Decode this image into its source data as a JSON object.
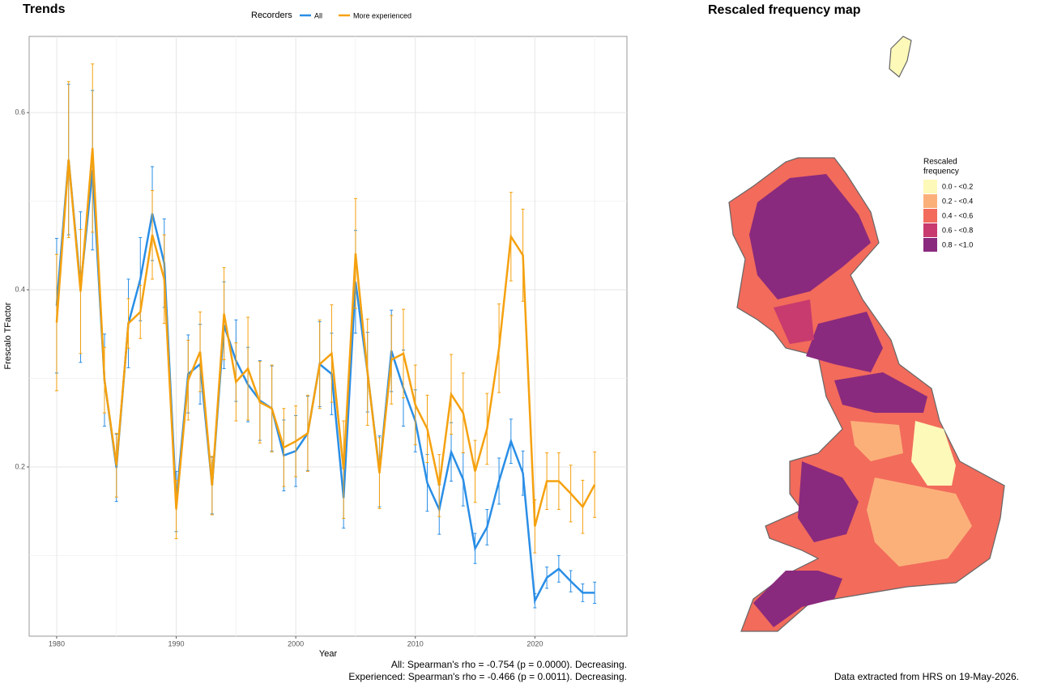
{
  "chart_data": {
    "type": "line",
    "title": "Trends",
    "legend_title": "Recorders",
    "legend_position": "top",
    "xlabel": "Year",
    "ylabel": "Frescalo TFactor",
    "x": [
      1980,
      1981,
      1982,
      1983,
      1984,
      1985,
      1986,
      1987,
      1988,
      1989,
      1990,
      1991,
      1992,
      1993,
      1994,
      1995,
      1996,
      1997,
      1998,
      1999,
      2000,
      2001,
      2002,
      2003,
      2004,
      2005,
      2006,
      2007,
      2008,
      2009,
      2010,
      2011,
      2012,
      2013,
      2014,
      2015,
      2016,
      2017,
      2018,
      2019,
      2020,
      2021,
      2022,
      2023,
      2024,
      2025
    ],
    "series": [
      {
        "name": "All",
        "color": "#2a8ee6",
        "values": [
          0.382,
          0.547,
          0.403,
          0.535,
          0.298,
          0.199,
          0.362,
          0.412,
          0.486,
          0.43,
          0.161,
          0.305,
          0.316,
          0.179,
          0.36,
          0.32,
          0.293,
          0.275,
          0.266,
          0.213,
          0.218,
          0.238,
          0.316,
          0.305,
          0.165,
          0.409,
          0.307,
          0.195,
          0.331,
          0.289,
          0.252,
          0.182,
          0.152,
          0.217,
          0.186,
          0.108,
          0.132,
          0.184,
          0.229,
          0.193,
          0.049,
          0.075,
          0.085,
          0.071,
          0.058,
          0.058
        ],
        "errors": [
          0.076,
          0.085,
          0.085,
          0.09,
          0.052,
          0.038,
          0.05,
          0.047,
          0.053,
          0.05,
          0.034,
          0.044,
          0.045,
          0.032,
          0.049,
          0.046,
          0.042,
          0.045,
          0.048,
          0.04,
          0.04,
          0.042,
          0.048,
          0.046,
          0.034,
          0.058,
          0.045,
          0.04,
          0.046,
          0.043,
          0.035,
          0.032,
          0.028,
          0.033,
          0.03,
          0.017,
          0.02,
          0.026,
          0.025,
          0.025,
          0.008,
          0.012,
          0.015,
          0.012,
          0.01,
          0.012
        ]
      },
      {
        "name": "More experienced",
        "color": "#f5a10f",
        "values": [
          0.363,
          0.547,
          0.398,
          0.56,
          0.298,
          0.202,
          0.362,
          0.375,
          0.462,
          0.412,
          0.152,
          0.298,
          0.33,
          0.179,
          0.373,
          0.296,
          0.311,
          0.273,
          0.266,
          0.222,
          0.229,
          0.238,
          0.316,
          0.328,
          0.197,
          0.441,
          0.307,
          0.193,
          0.321,
          0.328,
          0.27,
          0.243,
          0.179,
          0.282,
          0.261,
          0.195,
          0.243,
          0.334,
          0.46,
          0.439,
          0.133,
          0.184,
          0.184,
          0.17,
          0.155,
          0.18
        ],
        "errors": [
          0.077,
          0.088,
          0.07,
          0.095,
          0.037,
          0.036,
          0.028,
          0.03,
          0.05,
          0.05,
          0.033,
          0.045,
          0.045,
          0.033,
          0.052,
          0.044,
          0.058,
          0.046,
          0.049,
          0.044,
          0.04,
          0.043,
          0.05,
          0.055,
          0.055,
          0.062,
          0.06,
          0.04,
          0.05,
          0.05,
          0.045,
          0.038,
          0.035,
          0.045,
          0.045,
          0.035,
          0.04,
          0.05,
          0.05,
          0.052,
          0.03,
          0.032,
          0.032,
          0.032,
          0.03,
          0.037
        ]
      }
    ],
    "xlim": [
      1977.7,
      2027.7
    ],
    "ylim": [
      0.009,
      0.686
    ],
    "xticks": [
      1980,
      1990,
      2000,
      2010,
      2020
    ],
    "yticks": [
      0.2,
      0.4,
      0.6
    ],
    "xticks_minor": [
      1985,
      1995,
      2005,
      2015,
      2025
    ],
    "yticks_minor": [
      0.1,
      0.3,
      0.5
    ],
    "grid": true,
    "annotations": [
      "All: Spearman's rho = -0.754 (p = 0.0000). Decreasing.",
      "Experienced: Spearman's rho = -0.466 (p = 0.0011). Decreasing."
    ]
  },
  "map": {
    "title": "Rescaled frequency map",
    "legend_title": [
      "Rescaled",
      "frequency"
    ],
    "legend": [
      {
        "label": "0.0 - <0.2",
        "color": "#fdf9b9"
      },
      {
        "label": "0.2 - <0.4",
        "color": "#fbb07a"
      },
      {
        "label": "0.4 - <0.6",
        "color": "#f26b5b"
      },
      {
        "label": "0.6 - <0.8",
        "color": "#c83b6e"
      },
      {
        "label": "0.8 - <1.0",
        "color": "#8a2a7e"
      }
    ],
    "footer": "Data extracted from HRS on 19-May-2026."
  }
}
